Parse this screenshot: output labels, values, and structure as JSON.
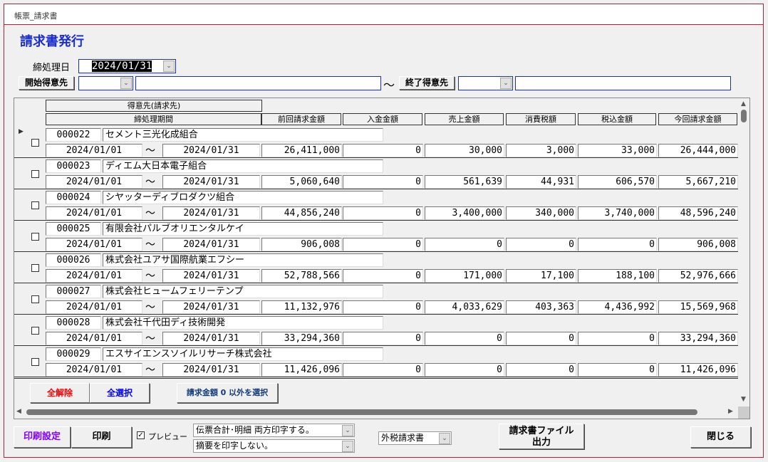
{
  "window_title": "帳票_請求書",
  "page_title": "請求書発行",
  "closing_date": {
    "label": "締処理日",
    "value": "2024/01/31"
  },
  "start_customer": {
    "label": "開始得意先",
    "code": "",
    "name": ""
  },
  "tilde": "～",
  "end_customer": {
    "label": "終了得意先",
    "code": "",
    "name": ""
  },
  "grid": {
    "headers": {
      "customer": "得意先(請求先)",
      "period": "締処理期間",
      "prev": "前回請求金額",
      "deposit": "入金金額",
      "sales": "売上金額",
      "tax": "消費税額",
      "total": "税込金額",
      "current": "今回請求金額"
    },
    "rows": [
      {
        "code": "000022",
        "name": "セメント三光化成組合",
        "from": "2024/01/01",
        "to": "2024/01/31",
        "prev": "26,411,000",
        "deposit": "0",
        "sales": "30,000",
        "tax": "3,000",
        "total": "33,000",
        "current": "26,444,000",
        "checked": false,
        "current_row": true
      },
      {
        "code": "000023",
        "name": "ディエム大日本電子組合",
        "from": "2024/01/01",
        "to": "2024/01/31",
        "prev": "5,060,640",
        "deposit": "0",
        "sales": "561,639",
        "tax": "44,931",
        "total": "606,570",
        "current": "5,667,210",
        "checked": false
      },
      {
        "code": "000024",
        "name": "シヤッターディブロダクツ組合",
        "from": "2024/01/01",
        "to": "2024/01/31",
        "prev": "44,856,240",
        "deposit": "0",
        "sales": "3,400,000",
        "tax": "340,000",
        "total": "3,740,000",
        "current": "48,596,240",
        "checked": false
      },
      {
        "code": "000025",
        "name": "有限会社パルブオリエンタルケイ",
        "from": "2024/01/01",
        "to": "2024/01/31",
        "prev": "906,008",
        "deposit": "0",
        "sales": "0",
        "tax": "0",
        "total": "0",
        "current": "906,008",
        "checked": false
      },
      {
        "code": "000026",
        "name": "株式会社ユアサ国際航業エフシー",
        "from": "2024/01/01",
        "to": "2024/01/31",
        "prev": "52,788,566",
        "deposit": "0",
        "sales": "171,000",
        "tax": "17,100",
        "total": "188,100",
        "current": "52,976,666",
        "checked": false
      },
      {
        "code": "000027",
        "name": "株式会社ヒュームフェリーテンプ",
        "from": "2024/01/01",
        "to": "2024/01/31",
        "prev": "11,132,976",
        "deposit": "0",
        "sales": "4,033,629",
        "tax": "403,363",
        "total": "4,436,992",
        "current": "15,569,968",
        "checked": false
      },
      {
        "code": "000028",
        "name": "株式会社千代田ディ技術開発",
        "from": "2024/01/01",
        "to": "2024/01/31",
        "prev": "33,294,360",
        "deposit": "0",
        "sales": "0",
        "tax": "0",
        "total": "0",
        "current": "33,294,360",
        "checked": false
      },
      {
        "code": "000029",
        "name": "エスサイエンスソイルリサーチ株式会社",
        "from": "2024/01/01",
        "to": "2024/01/31",
        "prev": "11,426,096",
        "deposit": "0",
        "sales": "0",
        "tax": "0",
        "total": "0",
        "current": "11,426,096",
        "checked": false
      }
    ]
  },
  "buttons": {
    "clear_all": "全解除",
    "select_all": "全選択",
    "select_nonzero": "請求金額 0 以外を選択",
    "print_settings": "印刷設定",
    "print": "印刷",
    "export": "請求書ファイル\n出力",
    "close": "閉じる"
  },
  "preview": {
    "label": "プレビュー",
    "checked": true
  },
  "print_option1": "伝票合計･明細 両方印字する。",
  "print_option2": "摘要を印字しない。",
  "invoice_type": "外税請求書",
  "colors": {
    "title": "#1a2fd0",
    "clear_all": "#ff0000",
    "select_all": "#0000ff",
    "print_settings": "#8000ff",
    "window_border": "#b22234"
  }
}
